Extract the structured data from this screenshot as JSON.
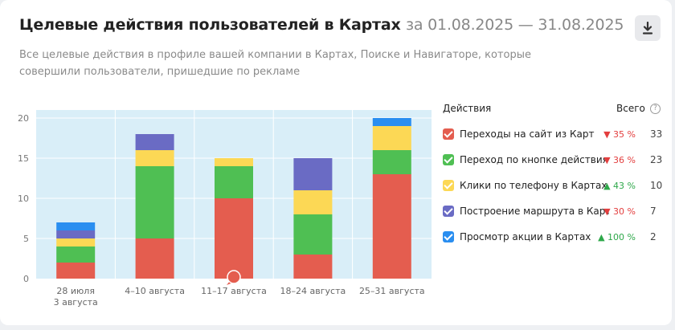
{
  "header": {
    "title": "Целевые действия пользователей в Картах",
    "period": "за 01.08.2025 — 31.08.2025",
    "subtitle": "Все целевые действия в профиле вашей компании в Картах, Поиске и Навигаторе, которые совершили пользователи, пришедшие по рекламе",
    "download_icon": "download-icon"
  },
  "legend": {
    "heading": "Действия",
    "total_heading": "Всего",
    "help_icon": "help-icon",
    "items": [
      {
        "label": "Переходы на сайт из Карт",
        "change": "35 %",
        "trend": "down",
        "total": "33",
        "color": "#e45d4f",
        "checked": true
      },
      {
        "label": "Переход по кнопке действия из Карт",
        "change": "36 %",
        "trend": "down",
        "total": "23",
        "color": "#4fbf53",
        "checked": true
      },
      {
        "label": "Клики по телефону в Картах",
        "change": "43 %",
        "trend": "up",
        "total": "10",
        "color": "#fcd855",
        "checked": true
      },
      {
        "label": "Построение маршрута в Картах",
        "change": "30 %",
        "trend": "down",
        "total": "7",
        "color": "#6a6bc4",
        "checked": true
      },
      {
        "label": "Просмотр акции в Картах",
        "change": "100 %",
        "trend": "up",
        "total": "2",
        "color": "#2a8ef0",
        "checked": true
      }
    ]
  },
  "chart_data": {
    "type": "bar",
    "stacked": true,
    "categories": [
      [
        "28 июля",
        "3 августа"
      ],
      [
        "4–10 августа"
      ],
      [
        "11–17 августа"
      ],
      [
        "18–24 августа"
      ],
      [
        "25–31 августа"
      ]
    ],
    "series": [
      {
        "name": "Переходы на сайт из Карт",
        "color": "#e45d4f",
        "values": [
          2,
          5,
          10,
          3,
          13
        ]
      },
      {
        "name": "Переход по кнопке действия из Карт",
        "color": "#4fbf53",
        "values": [
          2,
          9,
          4,
          5,
          3
        ]
      },
      {
        "name": "Клики по телефону в Картах",
        "color": "#fcd855",
        "values": [
          1,
          2,
          1,
          3,
          3
        ]
      },
      {
        "name": "Построение маршрута в Картах",
        "color": "#6a6bc4",
        "values": [
          1,
          2,
          0,
          4,
          0
        ]
      },
      {
        "name": "Просмотр акции в Картах",
        "color": "#2a8ef0",
        "values": [
          1,
          0,
          0,
          0,
          1
        ]
      }
    ],
    "yticks": [
      0,
      5,
      10,
      15,
      20
    ],
    "ylim": [
      0,
      21
    ],
    "grid": true,
    "plot_background": "#d9eef8",
    "marker_icon": "comment-marker-icon",
    "marker_category_index": 2
  }
}
